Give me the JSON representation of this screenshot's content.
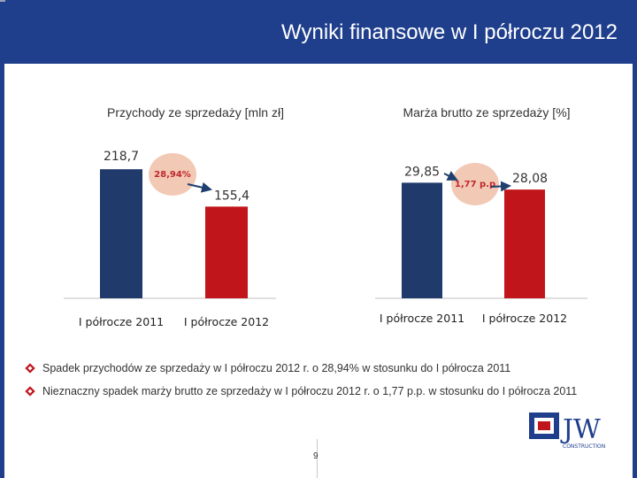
{
  "header": {
    "title": "Wyniki finansowe w I półroczu 2012"
  },
  "colors": {
    "header_bg": "#1f3f8c",
    "bar_2011": "#1f3a6b",
    "bar_2012": "#c0151b",
    "badge": "#f2c9b5",
    "arrow": "#1f3f6f"
  },
  "chart_data": [
    {
      "type": "bar",
      "title": "Przychody ze sprzedaży [mln zł]",
      "categories": [
        "I półrocze 2011",
        "I półrocze 2012"
      ],
      "values": [
        218.7,
        155.4
      ],
      "value_labels": [
        "218,7",
        "155,4"
      ],
      "change_label": "28,94%",
      "ylim": [
        0,
        240
      ]
    },
    {
      "type": "bar",
      "title": "Marża brutto ze sprzedaży [%]",
      "categories": [
        "I półrocze 2011",
        "I półrocze 2012"
      ],
      "values": [
        29.85,
        28.08
      ],
      "value_labels": [
        "29,85",
        "28,08"
      ],
      "change_label": "1,77 p.p",
      "ylim": [
        0,
        32
      ]
    }
  ],
  "bullets": [
    "Spadek przychodów ze sprzedaży w I półroczu 2012 r. o 28,94% w stosunku do I półrocza 2011",
    "Nieznaczny spadek marży brutto ze sprzedaży w I półroczu 2012 r. o 1,77 p.p. w stosunku do I półrocza 2011"
  ],
  "logo": {
    "text": "JW",
    "subtitle": "CONSTRUCTION"
  },
  "page_number": "9"
}
